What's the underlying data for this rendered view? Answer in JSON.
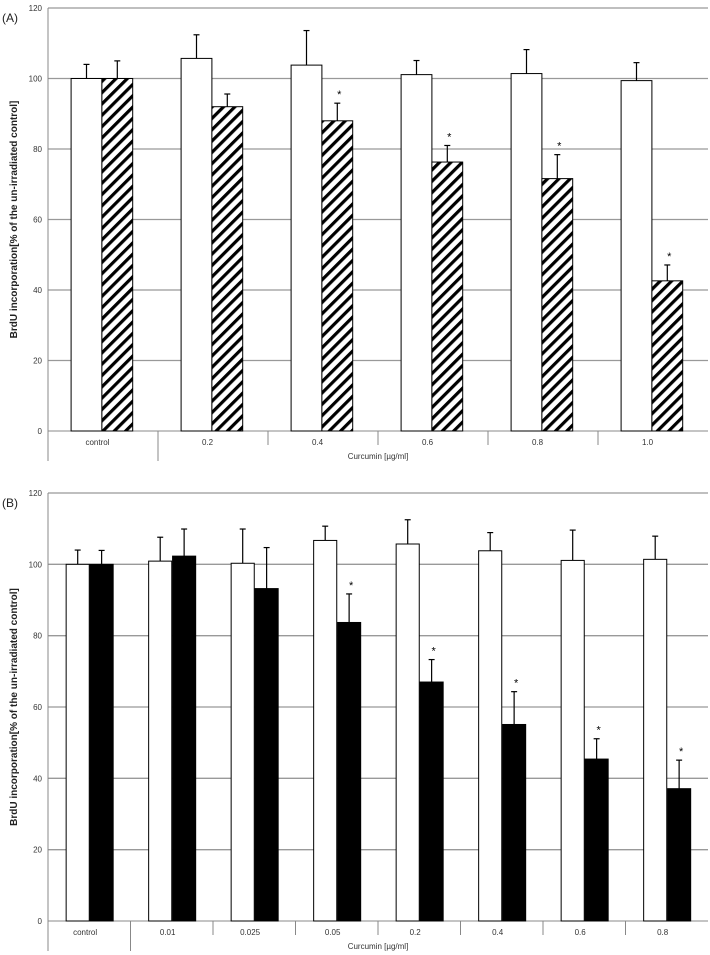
{
  "chart_data": [
    {
      "panel_label": "(A)",
      "type": "bar",
      "ylabel": "BrdU incorporation[% of the  un-irradiated control]",
      "xlabel": "Curcumin [µg/ml]",
      "ylim": [
        0,
        120
      ],
      "yticks": [
        "0",
        "20",
        "40",
        "60",
        "80",
        "100",
        "120"
      ],
      "grid": true,
      "categories": [
        "control",
        "0.2",
        "0.4",
        "0.6",
        "0.8",
        "1.0"
      ],
      "series": [
        {
          "fill": "white",
          "values": [
            100,
            105.7,
            103.8,
            101.1,
            101.4,
            99.4
          ],
          "errors": [
            4,
            6.7,
            9.8,
            4,
            6.8,
            5.1
          ],
          "significant": [
            false,
            false,
            false,
            false,
            false,
            false
          ]
        },
        {
          "fill": "hatched",
          "values": [
            100,
            92,
            88,
            76.3,
            71.6,
            42.6
          ],
          "errors": [
            5,
            3.6,
            5,
            4.7,
            6.8,
            4.5
          ],
          "significant": [
            false,
            false,
            true,
            true,
            true,
            true
          ]
        }
      ],
      "significance_mark": "*"
    },
    {
      "panel_label": "(B)",
      "type": "bar",
      "ylabel": "BrdU incorporation[% of the un-irradiated control]",
      "xlabel": "Curcumin [µg/ml]",
      "ylim": [
        0,
        120
      ],
      "yticks": [
        "0",
        "20",
        "40",
        "60",
        "80",
        "100",
        "120"
      ],
      "grid": true,
      "categories": [
        "control",
        "0.01",
        "0.025",
        "0.05",
        "0.2",
        "0.4",
        "0.6",
        "0.8"
      ],
      "series": [
        {
          "fill": "white",
          "values": [
            100,
            100.9,
            100.3,
            106.7,
            105.7,
            103.8,
            101.1,
            101.4
          ],
          "errors": [
            4,
            6.7,
            9.6,
            4,
            6.8,
            5.1,
            8.5,
            6.5
          ],
          "significant": [
            false,
            false,
            false,
            false,
            false,
            false,
            false,
            false
          ]
        },
        {
          "fill": "black",
          "values": [
            100,
            102.3,
            93.2,
            83.7,
            67,
            55.1,
            45.4,
            37.1
          ],
          "errors": [
            3.9,
            7.6,
            11.5,
            8,
            6.3,
            9.2,
            5.7,
            8
          ],
          "significant": [
            false,
            false,
            false,
            true,
            true,
            true,
            true,
            true
          ]
        }
      ],
      "significance_mark": "*"
    }
  ]
}
